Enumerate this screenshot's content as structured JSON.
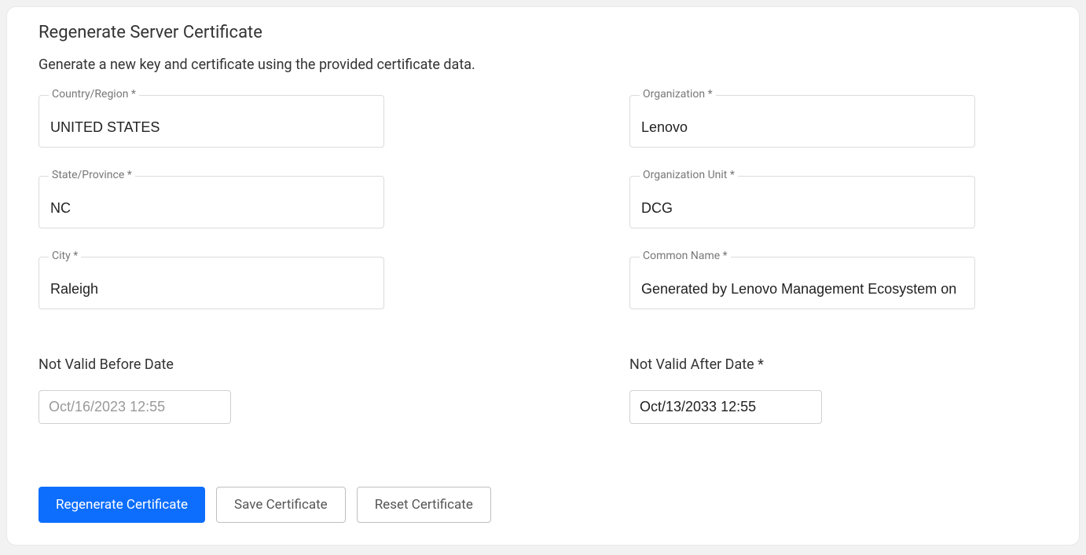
{
  "header": {
    "title": "Regenerate Server Certificate",
    "subtitle": "Generate a new key and certificate using the provided certificate data."
  },
  "fields": {
    "country": {
      "label": "Country/Region *",
      "value": "UNITED STATES"
    },
    "organization": {
      "label": "Organization *",
      "value": "Lenovo"
    },
    "state": {
      "label": "State/Province *",
      "value": "NC"
    },
    "org_unit": {
      "label": "Organization Unit *",
      "value": "DCG"
    },
    "city": {
      "label": "City *",
      "value": "Raleigh"
    },
    "common_name": {
      "label": "Common Name *",
      "value": "Generated by Lenovo Management Ecosystem on"
    }
  },
  "dates": {
    "not_before": {
      "label": "Not Valid Before Date",
      "value": "Oct/16/2023 12:55"
    },
    "not_after": {
      "label": "Not Valid After Date *",
      "value": "Oct/13/2033 12:55"
    }
  },
  "buttons": {
    "regenerate": "Regenerate Certificate",
    "save": "Save Certificate",
    "reset": "Reset Certificate"
  },
  "colors": {
    "primary": "#0d6efd",
    "border": "#dcdcdc",
    "background": "#f2f2f2",
    "text": "#333333",
    "muted": "#777777"
  }
}
